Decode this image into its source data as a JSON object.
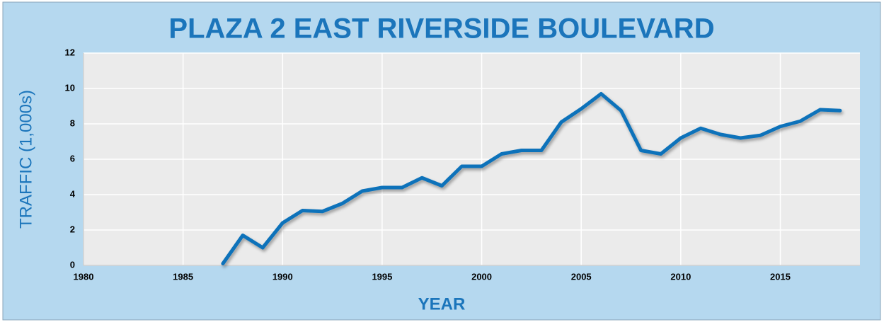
{
  "chart_data": {
    "type": "line",
    "title": "PLAZA 2 EAST RIVERSIDE BOULEVARD",
    "x_label": "YEAR",
    "y_label": "TRAFFIC (1,000s)",
    "x": [
      1987,
      1988,
      1989,
      1990,
      1991,
      1992,
      1993,
      1994,
      1995,
      1996,
      1997,
      1998,
      1999,
      2000,
      2001,
      2002,
      2003,
      2004,
      2005,
      2006,
      2007,
      2008,
      2009,
      2010,
      2011,
      2012,
      2013,
      2014,
      2015,
      2016,
      2017,
      2018
    ],
    "series": [
      {
        "name": "Traffic",
        "color": "#0a72ba",
        "values": [
          0.1,
          1.7,
          1.0,
          2.4,
          3.1,
          3.05,
          3.5,
          4.2,
          4.4,
          4.4,
          4.95,
          4.5,
          5.6,
          5.6,
          6.3,
          6.5,
          6.5,
          8.1,
          8.85,
          9.7,
          8.75,
          6.5,
          6.3,
          7.2,
          7.75,
          7.4,
          7.2,
          7.35,
          7.85,
          8.15,
          8.8,
          8.75
        ]
      }
    ],
    "xlim": [
      1980,
      2019
    ],
    "xticks": [
      1980,
      1985,
      1990,
      1995,
      2000,
      2005,
      2010,
      2015
    ],
    "ylim": [
      0,
      12
    ],
    "yticks": [
      0,
      2,
      4,
      6,
      8,
      10,
      12
    ],
    "grid": true
  }
}
